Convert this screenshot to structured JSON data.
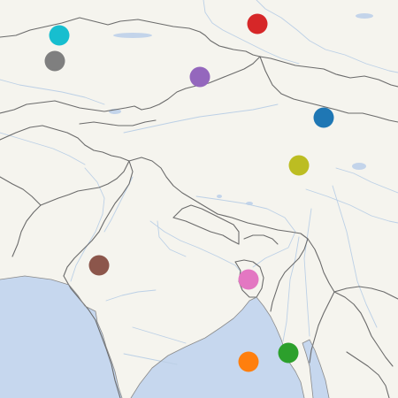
{
  "map": {
    "land_color": "#f5f4ee",
    "water_color": "#c6d7ee",
    "border_color": "#6b6b6b",
    "river_color": "#bcd0e6",
    "markers": [
      {
        "id": "red",
        "color": "#d62728"
      },
      {
        "id": "cyan",
        "color": "#17becf"
      },
      {
        "id": "gray",
        "color": "#7f7f7f"
      },
      {
        "id": "purple",
        "color": "#9467bd"
      },
      {
        "id": "blue",
        "color": "#1f77b4"
      },
      {
        "id": "olive",
        "color": "#bcbd22"
      },
      {
        "id": "brown",
        "color": "#8c564b"
      },
      {
        "id": "pink",
        "color": "#e377c2"
      },
      {
        "id": "green",
        "color": "#2ca02c"
      },
      {
        "id": "orange",
        "color": "#ff7f0e"
      }
    ]
  }
}
